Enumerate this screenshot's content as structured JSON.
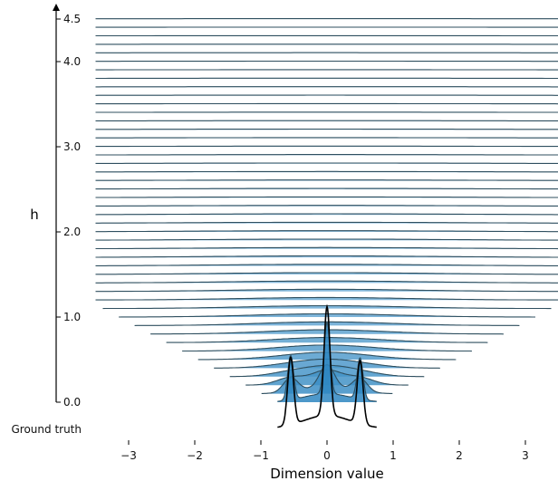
{
  "chart_data": {
    "type": "ridgeline",
    "xlabel": "Dimension value",
    "ylabel": "h",
    "ground_truth_label": "Ground truth",
    "x_ticks": [
      -3,
      -2,
      -1,
      0,
      1,
      2,
      3
    ],
    "x_tick_labels": [
      "−3",
      "−2",
      "−1",
      "0",
      "1",
      "2",
      "3"
    ],
    "xlim": [
      -3.5,
      3.5
    ],
    "y_ticks": [
      0.0,
      1.0,
      2.0,
      3.0,
      4.0,
      4.5
    ],
    "y_tick_labels": [
      "0.0",
      "1.0",
      "2.0",
      "3.0",
      "4.0",
      "4.5"
    ],
    "ylim": [
      0.0,
      4.5
    ],
    "h_values": [
      0.0,
      0.1,
      0.2,
      0.3,
      0.4,
      0.5,
      0.6,
      0.7,
      0.8,
      0.9,
      1.0,
      1.1,
      1.2,
      1.3,
      1.4,
      1.5,
      1.6,
      1.7,
      1.8,
      1.9,
      2.0,
      2.1,
      2.2,
      2.3,
      2.4,
      2.5,
      2.6,
      2.7,
      2.8,
      2.9,
      3.0,
      3.1,
      3.2,
      3.3,
      3.4,
      3.5,
      3.6,
      3.7,
      3.8,
      3.9,
      4.0,
      4.1,
      4.2,
      4.3,
      4.4,
      4.5
    ],
    "ground_truth_peaks": [
      {
        "x": -0.55,
        "height": 0.62
      },
      {
        "x": 0.0,
        "height": 1.0
      },
      {
        "x": 0.5,
        "height": 0.58
      }
    ],
    "ground_truth_range": [
      -0.75,
      0.75
    ],
    "fill_color_low_h": "#2e86c1",
    "fill_color_high_h": "#b9d7ea",
    "line_color": "#2f4f5f",
    "ground_truth_line_color": "#000000"
  }
}
